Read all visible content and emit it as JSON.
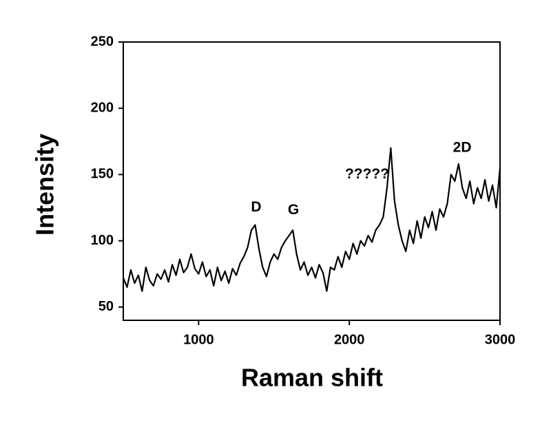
{
  "chart_data": {
    "type": "line",
    "x_label": "Raman shift",
    "y_label": "Intensity",
    "x": [
      500,
      525,
      550,
      575,
      600,
      625,
      650,
      675,
      700,
      725,
      750,
      775,
      800,
      825,
      850,
      875,
      900,
      925,
      950,
      975,
      1000,
      1025,
      1050,
      1075,
      1100,
      1125,
      1150,
      1175,
      1200,
      1225,
      1250,
      1275,
      1300,
      1325,
      1350,
      1375,
      1400,
      1425,
      1450,
      1475,
      1500,
      1525,
      1550,
      1575,
      1600,
      1625,
      1650,
      1675,
      1700,
      1725,
      1750,
      1775,
      1800,
      1825,
      1850,
      1875,
      1900,
      1925,
      1950,
      1975,
      2000,
      2025,
      2050,
      2075,
      2100,
      2125,
      2150,
      2175,
      2200,
      2225,
      2250,
      2275,
      2300,
      2325,
      2350,
      2375,
      2400,
      2425,
      2450,
      2475,
      2500,
      2525,
      2550,
      2575,
      2600,
      2625,
      2650,
      2675,
      2700,
      2725,
      2750,
      2775,
      2800,
      2825,
      2850,
      2875,
      2900,
      2925,
      2950,
      2975,
      3000
    ],
    "values": [
      72,
      65,
      78,
      68,
      74,
      62,
      80,
      70,
      66,
      75,
      71,
      78,
      69,
      82,
      74,
      86,
      76,
      80,
      90,
      79,
      75,
      84,
      73,
      78,
      66,
      80,
      70,
      77,
      68,
      79,
      74,
      83,
      88,
      95,
      108,
      112,
      94,
      80,
      73,
      84,
      90,
      86,
      95,
      100,
      104,
      108,
      90,
      78,
      84,
      74,
      80,
      72,
      82,
      76,
      62,
      80,
      78,
      88,
      80,
      92,
      86,
      98,
      90,
      100,
      96,
      104,
      99,
      108,
      112,
      118,
      140,
      170,
      130,
      112,
      100,
      92,
      108,
      98,
      115,
      102,
      118,
      110,
      122,
      108,
      124,
      118,
      128,
      150,
      145,
      158,
      140,
      132,
      145,
      128,
      140,
      132,
      146,
      130,
      142,
      125,
      155
    ],
    "color": "#000000",
    "xlim": [
      500,
      3000
    ],
    "xticks": [
      1000,
      2000,
      3000
    ],
    "ylim": [
      40,
      250
    ],
    "yticks": [
      50,
      100,
      150,
      200,
      250
    ],
    "annotations": [
      {
        "text": "D",
        "x": 1382,
        "y": 125
      },
      {
        "text": "G",
        "x": 1629,
        "y": 123
      },
      {
        "text": "?????",
        "x": 2118,
        "y": 150
      },
      {
        "text": "2D",
        "x": 2749,
        "y": 170
      }
    ]
  }
}
